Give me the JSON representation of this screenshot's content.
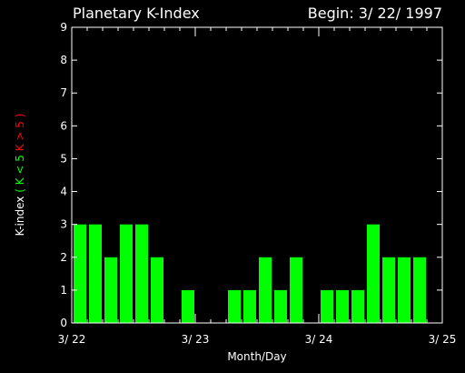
{
  "chart_data": {
    "type": "bar",
    "title": "Planetary K-Index",
    "begin_label": "Begin: 3/ 22/ 1997",
    "xlabel": "Month/Day",
    "ylabel_main": "K-index",
    "ylabel_green": "( K < 5",
    "ylabel_red": "K > 5 )",
    "ylim": [
      0,
      9
    ],
    "yticks": [
      "0",
      "1",
      "2",
      "3",
      "4",
      "5",
      "6",
      "7",
      "8",
      "9"
    ],
    "xticks": [
      "3/ 22",
      "3/ 23",
      "3/ 24",
      "3/ 25"
    ],
    "bars_per_day": 8,
    "values": [
      3,
      3,
      2,
      3,
      3,
      2,
      0,
      1,
      0,
      0,
      1,
      1,
      2,
      1,
      2,
      0,
      1,
      1,
      1,
      3,
      2,
      2,
      2,
      0
    ],
    "colors": {
      "background": "#000000",
      "axis": "#ffffff",
      "text": "#ffffff",
      "bar_normal": "#00ff00",
      "bar_storm": "#ff0000",
      "label_green": "#00ff00",
      "label_red": "#ff0000"
    }
  }
}
